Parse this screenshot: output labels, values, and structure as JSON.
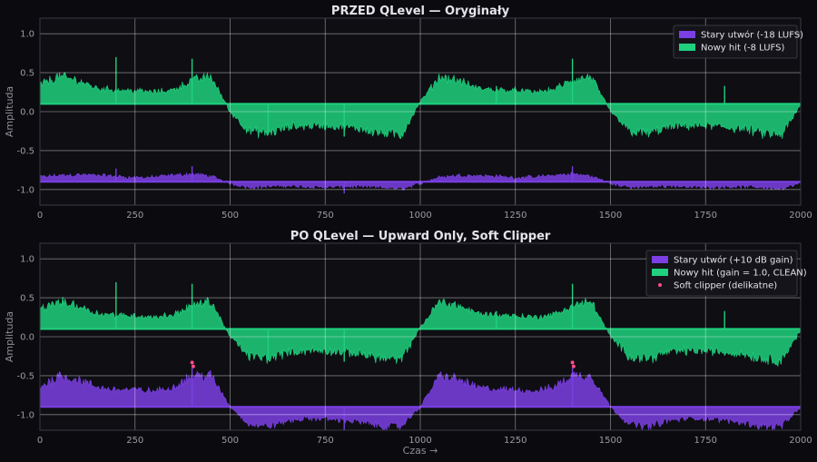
{
  "chart_data": [
    {
      "type": "area",
      "title": "PRZED QLevel — Oryginały",
      "xlabel": "",
      "ylabel": "Amplituda",
      "xlim": [
        0,
        2000
      ],
      "ylim": [
        -1.2,
        1.2
      ],
      "xticks": [
        0,
        250,
        500,
        750,
        1000,
        1250,
        1500,
        1750,
        2000
      ],
      "yticks": [
        1.0,
        0.5,
        0.0,
        -0.5,
        -1.0
      ],
      "xtick_labels": [
        "0",
        "250",
        "500",
        "750",
        "1000",
        "1250",
        "1500",
        "1750",
        "2000"
      ],
      "ytick_labels": [
        "1.0",
        "0.5",
        "0.0",
        "-0.5",
        "-1.0"
      ],
      "grid": true,
      "legend": "top-right",
      "series": [
        {
          "name": "Stary utwór (-18 LUFS)",
          "color": "#7b3fe4",
          "baseline": -0.9,
          "envelope": {
            "x": [
              0,
              50,
              100,
              150,
              200,
              250,
              300,
              350,
              400,
              450,
              500,
              550,
              600,
              650,
              700,
              750,
              800,
              850,
              900,
              950,
              1000,
              1050,
              1100,
              1150,
              1200,
              1250,
              1300,
              1350,
              1400,
              1450,
              1500,
              1550,
              1600,
              1650,
              1700,
              1750,
              1800,
              1850,
              1900,
              1950,
              2000
            ],
            "y": [
              -0.84,
              -0.82,
              -0.81,
              -0.82,
              -0.83,
              -0.85,
              -0.84,
              -0.82,
              -0.8,
              -0.83,
              -0.92,
              -0.97,
              -0.96,
              -0.95,
              -0.96,
              -0.97,
              -0.96,
              -0.96,
              -0.97,
              -0.99,
              -0.92,
              -0.84,
              -0.82,
              -0.82,
              -0.83,
              -0.85,
              -0.84,
              -0.82,
              -0.8,
              -0.83,
              -0.92,
              -0.97,
              -0.96,
              -0.95,
              -0.96,
              -0.97,
              -0.96,
              -0.96,
              -0.97,
              -0.99,
              -0.92
            ]
          },
          "spikes": [
            {
              "x": 200,
              "y": -0.73
            },
            {
              "x": 400,
              "y": -0.7
            },
            {
              "x": 800,
              "y": -1.05
            },
            {
              "x": 1400,
              "y": -0.7
            }
          ]
        },
        {
          "name": "Nowy hit (-8 LUFS)",
          "color": "#1fd17e",
          "baseline": 0.1,
          "envelope": {
            "x": [
              0,
              50,
              100,
              150,
              200,
              250,
              300,
              350,
              400,
              450,
              500,
              550,
              600,
              650,
              700,
              750,
              800,
              850,
              900,
              950,
              1000,
              1050,
              1100,
              1150,
              1200,
              1250,
              1300,
              1350,
              1400,
              1450,
              1500,
              1550,
              1600,
              1650,
              1700,
              1750,
              1800,
              1850,
              1900,
              1950,
              2000
            ],
            "y": [
              0.35,
              0.45,
              0.4,
              0.3,
              0.28,
              0.27,
              0.25,
              0.28,
              0.4,
              0.45,
              0.0,
              -0.25,
              -0.28,
              -0.2,
              -0.18,
              -0.18,
              -0.2,
              -0.22,
              -0.28,
              -0.3,
              0.12,
              0.45,
              0.4,
              0.3,
              0.28,
              0.27,
              0.25,
              0.28,
              0.4,
              0.45,
              0.0,
              -0.25,
              -0.28,
              -0.2,
              -0.18,
              -0.18,
              -0.2,
              -0.22,
              -0.28,
              -0.3,
              0.08
            ]
          },
          "spikes": [
            {
              "x": 200,
              "y": 0.7
            },
            {
              "x": 400,
              "y": 0.68
            },
            {
              "x": 600,
              "y": -0.3
            },
            {
              "x": 800,
              "y": -0.32
            },
            {
              "x": 1200,
              "y": 0.33
            },
            {
              "x": 1400,
              "y": 0.68
            },
            {
              "x": 1800,
              "y": 0.33
            }
          ]
        }
      ]
    },
    {
      "type": "area",
      "title": "PO QLevel — Upward Only, Soft Clipper",
      "xlabel": "Czas →",
      "ylabel": "Amplituda",
      "xlim": [
        0,
        2000
      ],
      "ylim": [
        -1.2,
        1.2
      ],
      "xticks": [
        0,
        250,
        500,
        750,
        1000,
        1250,
        1500,
        1750,
        2000
      ],
      "yticks": [
        1.0,
        0.5,
        0.0,
        -0.5,
        -1.0
      ],
      "xtick_labels": [
        "0",
        "250",
        "500",
        "750",
        "1000",
        "1250",
        "1500",
        "1750",
        "2000"
      ],
      "ytick_labels": [
        "1.0",
        "0.5",
        "0.0",
        "-0.5",
        "-1.0"
      ],
      "grid": true,
      "legend": "top-right",
      "series": [
        {
          "name": "Stary utwór (+10 dB gain)",
          "color": "#7b3fe4",
          "baseline": -0.9,
          "envelope": {
            "x": [
              0,
              50,
              100,
              150,
              200,
              250,
              300,
              350,
              400,
              450,
              500,
              550,
              600,
              650,
              700,
              750,
              800,
              850,
              900,
              950,
              1000,
              1050,
              1100,
              1150,
              1200,
              1250,
              1300,
              1350,
              1400,
              1450,
              1500,
              1550,
              1600,
              1650,
              1700,
              1750,
              1800,
              1850,
              1900,
              1950,
              2000
            ],
            "y": [
              -0.65,
              -0.5,
              -0.55,
              -0.65,
              -0.68,
              -0.68,
              -0.7,
              -0.65,
              -0.5,
              -0.5,
              -0.9,
              -1.12,
              -1.15,
              -1.08,
              -1.05,
              -1.05,
              -1.07,
              -1.1,
              -1.15,
              -1.15,
              -0.9,
              -0.5,
              -0.55,
              -0.65,
              -0.68,
              -0.68,
              -0.7,
              -0.65,
              -0.5,
              -0.5,
              -0.9,
              -1.12,
              -1.15,
              -1.08,
              -1.05,
              -1.05,
              -1.07,
              -1.1,
              -1.15,
              -1.15,
              -0.9
            ]
          },
          "spikes": [
            {
              "x": 400,
              "y": -0.4
            },
            {
              "x": 800,
              "y": -1.2
            },
            {
              "x": 1400,
              "y": -0.4
            }
          ]
        },
        {
          "name": "Nowy hit (gain = 1.0, CLEAN)",
          "color": "#1fd17e",
          "baseline": 0.1,
          "envelope": {
            "x": [
              0,
              50,
              100,
              150,
              200,
              250,
              300,
              350,
              400,
              450,
              500,
              550,
              600,
              650,
              700,
              750,
              800,
              850,
              900,
              950,
              1000,
              1050,
              1100,
              1150,
              1200,
              1250,
              1300,
              1350,
              1400,
              1450,
              1500,
              1550,
              1600,
              1650,
              1700,
              1750,
              1800,
              1850,
              1900,
              1950,
              2000
            ],
            "y": [
              0.35,
              0.45,
              0.4,
              0.3,
              0.28,
              0.27,
              0.25,
              0.28,
              0.4,
              0.45,
              0.0,
              -0.25,
              -0.28,
              -0.2,
              -0.18,
              -0.18,
              -0.2,
              -0.22,
              -0.28,
              -0.3,
              0.12,
              0.45,
              0.4,
              0.3,
              0.28,
              0.27,
              0.25,
              0.28,
              0.4,
              0.45,
              0.0,
              -0.25,
              -0.28,
              -0.2,
              -0.18,
              -0.18,
              -0.2,
              -0.22,
              -0.28,
              -0.3,
              0.08
            ]
          },
          "spikes": [
            {
              "x": 200,
              "y": 0.7
            },
            {
              "x": 400,
              "y": 0.68
            },
            {
              "x": 600,
              "y": -0.3
            },
            {
              "x": 800,
              "y": -0.32
            },
            {
              "x": 1200,
              "y": 0.33
            },
            {
              "x": 1400,
              "y": 0.68
            },
            {
              "x": 1800,
              "y": 0.33
            }
          ]
        }
      ],
      "markers": {
        "name": "Soft clipper (delikatne)",
        "color": "#ff4d8a",
        "type": "scatter",
        "points": [
          {
            "x": 400,
            "y": -0.33
          },
          {
            "x": 403,
            "y": -0.38
          },
          {
            "x": 1400,
            "y": -0.33
          },
          {
            "x": 1403,
            "y": -0.38
          }
        ]
      }
    }
  ]
}
